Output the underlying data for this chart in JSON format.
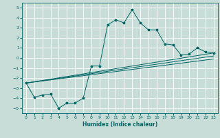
{
  "xlabel": "Humidex (Indice chaleur)",
  "ylabel": "",
  "bg_color": "#c8ddd8",
  "grid_color": "#ffffff",
  "line_color": "#006666",
  "xlim": [
    -0.5,
    23.5
  ],
  "ylim": [
    -5.5,
    5.5
  ],
  "xticks": [
    0,
    1,
    2,
    3,
    4,
    5,
    6,
    7,
    8,
    9,
    10,
    11,
    12,
    13,
    14,
    15,
    16,
    17,
    18,
    19,
    20,
    21,
    22,
    23
  ],
  "yticks": [
    -5,
    -4,
    -3,
    -2,
    -1,
    0,
    1,
    2,
    3,
    4,
    5
  ],
  "curve1_x": [
    0,
    1,
    2,
    3,
    4,
    5,
    6,
    7,
    8,
    9,
    10,
    11,
    12,
    13,
    14,
    15,
    16,
    17,
    18,
    19,
    20,
    21,
    22,
    23
  ],
  "curve1_y": [
    -2.5,
    -3.9,
    -3.7,
    -3.6,
    -5.0,
    -4.5,
    -4.5,
    -4.0,
    -0.8,
    -0.8,
    3.3,
    3.8,
    3.5,
    4.8,
    3.5,
    2.8,
    2.8,
    1.4,
    1.3,
    0.3,
    0.4,
    1.0,
    0.6,
    0.5
  ],
  "line1_x": [
    0,
    23
  ],
  "line1_y": [
    -2.5,
    0.5
  ],
  "line2_x": [
    0,
    23
  ],
  "line2_y": [
    -2.5,
    0.2
  ],
  "line3_x": [
    0,
    23
  ],
  "line3_y": [
    -2.5,
    -0.1
  ]
}
